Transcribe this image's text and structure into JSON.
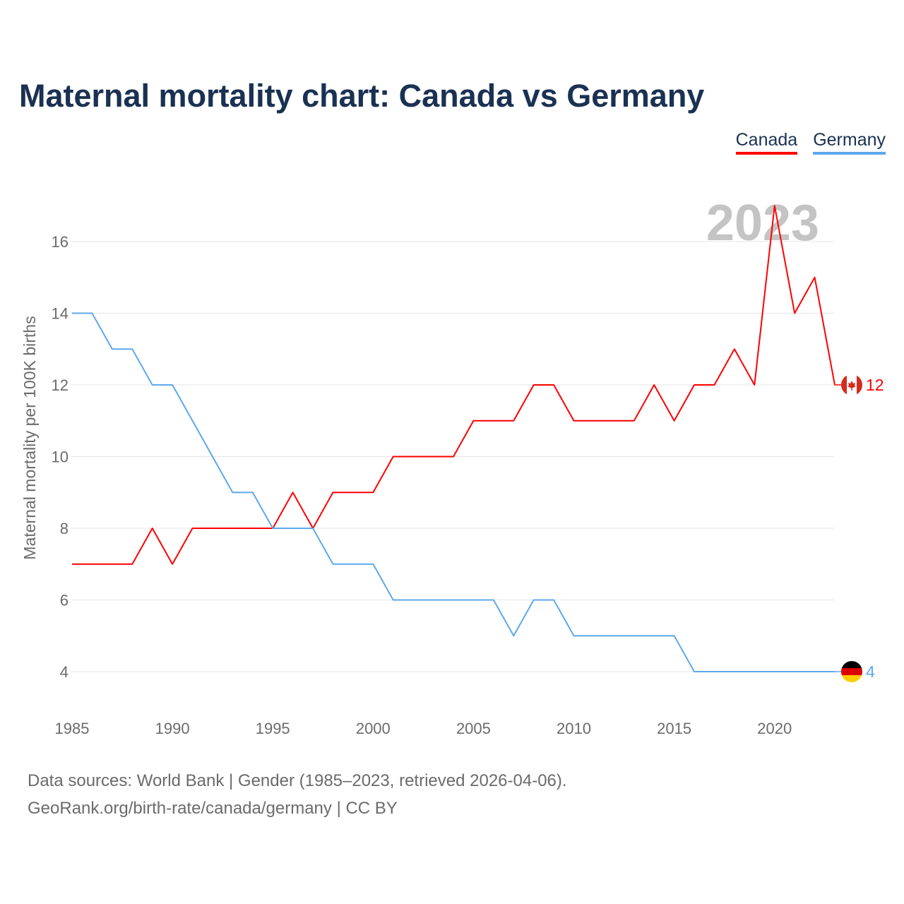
{
  "chart_data": {
    "type": "line",
    "title": "Maternal mortality chart: Canada vs Germany",
    "ylabel": "Maternal mortality per 100K births",
    "xlabel": "",
    "x": [
      1985,
      1986,
      1987,
      1988,
      1989,
      1990,
      1991,
      1992,
      1993,
      1994,
      1995,
      1996,
      1997,
      1998,
      1999,
      2000,
      2001,
      2002,
      2003,
      2004,
      2005,
      2006,
      2007,
      2008,
      2009,
      2010,
      2011,
      2012,
      2013,
      2014,
      2015,
      2016,
      2017,
      2018,
      2019,
      2020,
      2021,
      2022,
      2023
    ],
    "series": [
      {
        "name": "Canada",
        "color": "#ff0000",
        "values": [
          7,
          7,
          7,
          7,
          8,
          7,
          8,
          8,
          8,
          8,
          8,
          9,
          8,
          9,
          9,
          9,
          10,
          10,
          10,
          10,
          11,
          11,
          11,
          12,
          12,
          11,
          11,
          11,
          11,
          12,
          11,
          12,
          12,
          13,
          12,
          17,
          14,
          15,
          12
        ],
        "end_label": "12"
      },
      {
        "name": "Germany",
        "color": "#5ea8ec",
        "values": [
          14,
          14,
          13,
          13,
          12,
          12,
          11,
          10,
          9,
          9,
          8,
          8,
          8,
          7,
          7,
          7,
          6,
          6,
          6,
          6,
          6,
          6,
          5,
          6,
          6,
          5,
          5,
          5,
          5,
          5,
          5,
          4,
          4,
          4,
          4,
          4,
          4,
          4,
          4
        ],
        "end_label": "4"
      }
    ],
    "xticks": [
      "1985",
      "1990",
      "1995",
      "2000",
      "2005",
      "2010",
      "2015",
      "2020"
    ],
    "yticks": [
      "4",
      "6",
      "8",
      "10",
      "12",
      "14",
      "16"
    ],
    "xlim": [
      1985,
      2023
    ],
    "ylim": [
      3,
      17
    ],
    "grid": true,
    "legend": "top-right",
    "year_watermark": "2023"
  },
  "footer": {
    "line1": "Data sources: World Bank | Gender (1985–2023, retrieved 2026-04-06).",
    "line2": "GeoRank.org/birth-rate/canada/germany | CC BY"
  }
}
